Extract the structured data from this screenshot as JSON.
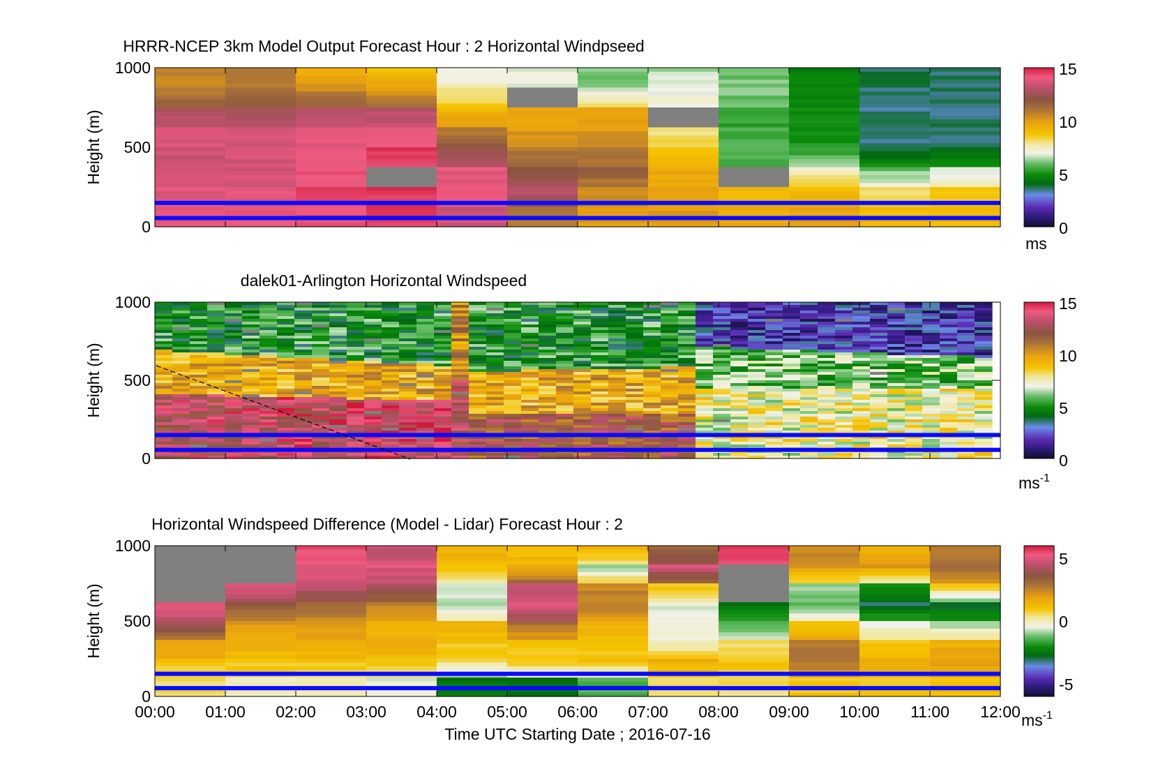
{
  "figure": {
    "xlabel": "Time UTC  Starting Date ; 2016-07-16",
    "x_ticks": [
      "00:00",
      "01:00",
      "02:00",
      "03:00",
      "04:00",
      "05:00",
      "06:00",
      "07:00",
      "08:00",
      "09:00",
      "10:00",
      "11:00",
      "12:00"
    ],
    "ylabel": "Height (m)",
    "y_ticks": [
      "0",
      "500",
      "1000"
    ],
    "blue_line_heights_m": [
      150,
      55
    ],
    "colors": {
      "lines": "#0a0aff",
      "missing": "#808080",
      "axes": "#000000",
      "background": "#ffffff"
    }
  },
  "chart_data": [
    {
      "type": "heatmap",
      "title": "HRRR-NCEP 3km Model Output   Forecast Hour : 2 Horizontal Windpseed",
      "xlabel": "",
      "ylabel": "Height (m)",
      "xlim": [
        "00:00",
        "12:00"
      ],
      "ylim": [
        0,
        1000
      ],
      "grid": false,
      "colorbar": {
        "range": [
          0,
          15
        ],
        "ticks": [
          "0",
          "5",
          "10",
          "15"
        ],
        "unit": "ms"
      },
      "hours": [
        "00:00",
        "01:00",
        "02:00",
        "03:00",
        "04:00",
        "05:00",
        "06:00",
        "07:00",
        "08:00",
        "09:00",
        "10:00",
        "11:00"
      ],
      "approx_windspeed_profiles_ms": [
        {
          "hour": "00:00",
          "top_to_bottom": [
            10.5,
            10.8,
            12.5,
            13.8,
            13.5,
            13.5,
            13.8,
            14.0
          ]
        },
        {
          "hour": "01:00",
          "top_to_bottom": [
            10.8,
            11.0,
            12.6,
            13.6,
            13.6,
            13.6,
            13.8,
            14.0
          ]
        },
        {
          "hour": "02:00",
          "top_to_bottom": [
            9.5,
            10.5,
            12.8,
            13.8,
            14.0,
            14.2,
            14.3,
            14.2
          ]
        },
        {
          "hour": "03:00",
          "top_to_bottom": [
            9.0,
            10.0,
            13.0,
            13.8,
            14.5,
            null,
            14.6,
            14.5
          ]
        },
        {
          "hour": "04:00",
          "top_to_bottom": [
            6.8,
            8.0,
            9.2,
            10.8,
            12.5,
            13.8,
            14.0,
            13.5
          ]
        },
        {
          "hour": "05:00",
          "top_to_bottom": [
            6.8,
            null,
            9.5,
            10.0,
            11.0,
            12.0,
            13.0,
            11.0
          ]
        },
        {
          "hour": "06:00",
          "top_to_bottom": [
            6.0,
            6.8,
            9.6,
            10.0,
            11.0,
            11.5,
            10.5,
            10.0
          ]
        },
        {
          "hour": "07:00",
          "top_to_bottom": [
            6.5,
            7.0,
            null,
            8.0,
            9.0,
            9.5,
            9.8,
            10.0
          ]
        },
        {
          "hour": "08:00",
          "top_to_bottom": [
            6.0,
            6.2,
            5.5,
            5.5,
            5.8,
            null,
            9.0,
            9.5
          ]
        },
        {
          "hour": "09:00",
          "top_to_bottom": [
            4.5,
            4.8,
            5.0,
            5.0,
            5.2,
            7.5,
            9.0,
            9.8
          ]
        },
        {
          "hour": "10:00",
          "top_to_bottom": [
            3.8,
            3.5,
            3.5,
            3.5,
            3.6,
            6.0,
            8.0,
            9.0
          ]
        },
        {
          "hour": "11:00",
          "top_to_bottom": [
            3.6,
            3.6,
            3.6,
            3.6,
            3.8,
            6.5,
            8.5,
            9.0
          ]
        }
      ]
    },
    {
      "type": "heatmap",
      "title": "dalek01-Arlington  Horizontal Windspeed",
      "xlabel": "",
      "ylabel": "Height (m)",
      "xlim": [
        "00:00",
        "12:00"
      ],
      "ylim": [
        0,
        1000
      ],
      "grid": false,
      "colorbar": {
        "range": [
          0,
          15
        ],
        "ticks": [
          "0",
          "5",
          "10",
          "15"
        ],
        "unit": "ms",
        "unit_exponent": "-1"
      },
      "dashed_line": {
        "from": [
          "00:00",
          590
        ],
        "to": [
          "03:35",
          0
        ]
      },
      "approx_layer_summary_ms": [
        {
          "period": "00:00-04:00",
          "upper_above_700m": 5.5,
          "mid_400_700m": 9.5,
          "lower_below_400m": 13.5
        },
        {
          "period": "04:00-07:30",
          "upper_above_600m": 5.0,
          "mid_300_600m": 9.5,
          "lower_below_300m": 12.5
        },
        {
          "period": "07:30-12:00",
          "upper_above_700m": 2.0,
          "mid_400_700m": 6.0,
          "lower_below_400m": 7.5
        }
      ]
    },
    {
      "type": "heatmap",
      "title": "Horizontal Windspeed Difference (Model - Lidar) Forecast Hour : 2",
      "xlabel": "Time UTC  Starting Date ; 2016-07-16",
      "ylabel": "Height (m)",
      "xlim": [
        "00:00",
        "12:00"
      ],
      "ylim": [
        0,
        1000
      ],
      "grid": false,
      "colorbar": {
        "range": [
          -6,
          6
        ],
        "ticks": [
          "-5",
          "0",
          "5"
        ],
        "unit": "ms",
        "unit_exponent": "-1"
      },
      "hours": [
        "00:00",
        "01:00",
        "02:00",
        "03:00",
        "04:00",
        "05:00",
        "06:00",
        "07:00",
        "08:00",
        "09:00",
        "10:00",
        "11:00"
      ],
      "approx_difference_profiles_ms": [
        {
          "hour": "00:00",
          "top_to_bottom": [
            null,
            null,
            null,
            5.0,
            4.0,
            2.0,
            1.0,
            0.5
          ]
        },
        {
          "hour": "01:00",
          "top_to_bottom": [
            null,
            null,
            5.0,
            3.5,
            2.0,
            1.5,
            1.0,
            0.0
          ]
        },
        {
          "hour": "02:00",
          "top_to_bottom": [
            5.5,
            5.0,
            4.5,
            3.0,
            2.0,
            1.5,
            1.0,
            0.0
          ]
        },
        {
          "hour": "03:00",
          "top_to_bottom": [
            4.5,
            5.0,
            4.0,
            2.5,
            1.5,
            1.5,
            1.0,
            -0.5
          ]
        },
        {
          "hour": "04:00",
          "top_to_bottom": [
            1.5,
            1.0,
            -0.5,
            -1.0,
            1.5,
            1.0,
            0.5,
            -2.5
          ]
        },
        {
          "hour": "05:00",
          "top_to_bottom": [
            1.0,
            1.5,
            4.5,
            5.0,
            3.0,
            1.0,
            1.0,
            -2.5
          ]
        },
        {
          "hour": "06:00",
          "top_to_bottom": [
            1.5,
            -1.0,
            2.5,
            2.5,
            1.5,
            1.0,
            1.0,
            -1.5
          ]
        },
        {
          "hour": "07:00",
          "top_to_bottom": [
            3.0,
            5.0,
            1.0,
            -0.5,
            -0.5,
            0.0,
            1.5,
            0.5
          ]
        },
        {
          "hour": "08:00",
          "top_to_bottom": [
            5.5,
            null,
            null,
            -2.5,
            -1.5,
            0.5,
            1.0,
            0.5
          ]
        },
        {
          "hour": "09:00",
          "top_to_bottom": [
            2.5,
            2.0,
            -1.0,
            -1.5,
            1.0,
            2.5,
            3.0,
            1.0
          ]
        },
        {
          "hour": "10:00",
          "top_to_bottom": [
            1.5,
            2.0,
            -2.0,
            -3.0,
            -0.5,
            1.0,
            1.5,
            1.0
          ]
        },
        {
          "hour": "11:00",
          "top_to_bottom": [
            2.5,
            3.0,
            1.0,
            -3.0,
            -1.0,
            1.5,
            2.0,
            1.0
          ]
        }
      ]
    }
  ]
}
